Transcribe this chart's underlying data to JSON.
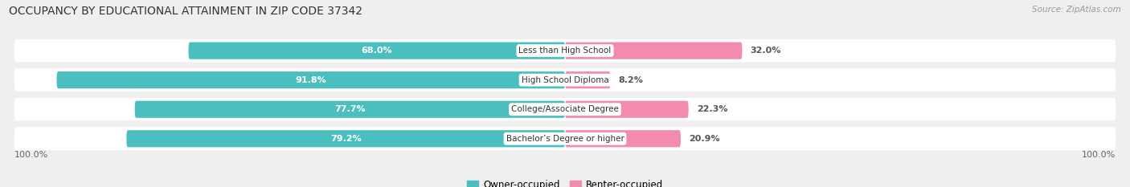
{
  "title": "OCCUPANCY BY EDUCATIONAL ATTAINMENT IN ZIP CODE 37342",
  "source": "Source: ZipAtlas.com",
  "categories": [
    "Less than High School",
    "High School Diploma",
    "College/Associate Degree",
    "Bachelor’s Degree or higher"
  ],
  "owner_values": [
    68.0,
    91.8,
    77.7,
    79.2
  ],
  "renter_values": [
    32.0,
    8.2,
    22.3,
    20.9
  ],
  "owner_color": "#4BBFBF",
  "renter_color": "#F28BAE",
  "background_color": "#efefef",
  "row_bg_color": "#ffffff",
  "title_fontsize": 10,
  "source_fontsize": 7.5,
  "value_fontsize": 8,
  "cat_fontsize": 7.5,
  "legend_fontsize": 8.5,
  "legend_owner": "Owner-occupied",
  "legend_renter": "Renter-occupied",
  "axis_label": "100.0%"
}
